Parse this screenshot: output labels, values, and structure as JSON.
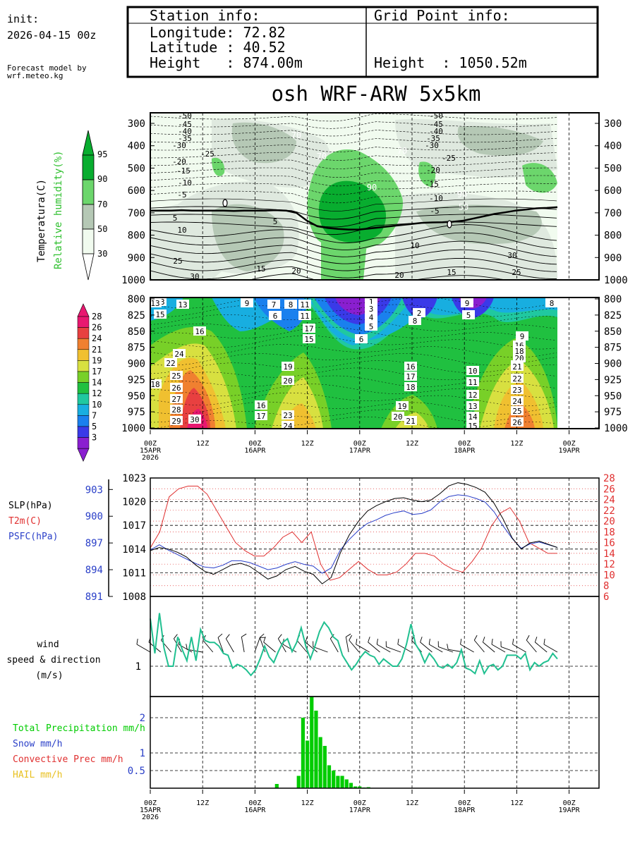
{
  "header": {
    "init_label": "init:",
    "init_time": "2026-04-15 00z",
    "model_line1": "Forecast model by",
    "model_line2": "wrf.meteo.kg",
    "station_title": "Station info:",
    "grid_title": "Grid Point info:",
    "station_lon": "Longitude: 72.82",
    "station_lat": "Latitude : 40.52",
    "station_height": "Height   : 874.00m",
    "grid_height": "Height  : 1050.52m",
    "main_title": "osh WRF-ARW 5x5km"
  },
  "colors": {
    "rh_30": "#f1fbef",
    "rh_50": "#dfe9df",
    "rh_70": "#b5c8b5",
    "rh_90": "#6cd66c",
    "rh_95": "#08ad2f",
    "t2m": "#e03030",
    "psfc": "#2a3fc8",
    "slp": "#000000",
    "wind": "#20c090",
    "precip": "#00cc00",
    "temp_scale": [
      "#8a1fd0",
      "#3a3ae8",
      "#1a80ee",
      "#18aee0",
      "#20c8a0",
      "#20c040",
      "#78d028",
      "#d8e040",
      "#f0c030",
      "#f08030",
      "#e84040",
      "#e81870"
    ]
  },
  "axes": {
    "time_ticks": [
      "00Z",
      "12Z",
      "00Z",
      "12Z",
      "00Z",
      "12Z",
      "00Z",
      "12Z",
      "00Z"
    ],
    "date_ticks": [
      "15APR",
      "16APR",
      "17APR",
      "18APR",
      "19APR"
    ],
    "year": "2026"
  },
  "chart_data": [
    {
      "type": "heatmap",
      "name": "upper-air",
      "ylabel_temp": "Temperatura(C)",
      "ylabel_rh": "Relative humidity(%)",
      "y_levels": [
        300,
        400,
        500,
        600,
        700,
        800,
        900,
        1000
      ],
      "rh_legend": [
        "95",
        "90",
        "70",
        "50",
        "30"
      ],
      "left_labels": [
        "-50",
        "-45",
        "-40",
        "-35",
        "-30",
        "-25",
        "-20",
        "-15",
        "-10",
        "-5",
        "0",
        "5",
        "10",
        "15",
        "20",
        "25",
        "30"
      ],
      "mid_labels": [
        "-50",
        "-45",
        "-40",
        "-35",
        "-30",
        "-25",
        "-20",
        "-15",
        "-10",
        "-5",
        "0",
        "5",
        "10",
        "15",
        "20",
        "25",
        "30"
      ],
      "rh_labels": [
        "70",
        "70",
        "90",
        "70",
        "90",
        "50"
      ],
      "freezing_level_hpa": [
        690,
        690,
        690,
        688,
        690,
        690,
        690,
        690,
        692,
        690,
        690,
        690,
        688,
        690,
        700,
        735,
        760,
        768,
        772,
        775,
        775,
        770,
        765,
        760,
        755,
        750,
        745,
        743,
        742,
        740,
        735,
        725,
        715,
        705,
        698,
        690,
        685,
        680,
        678,
        675
      ]
    },
    {
      "type": "heatmap",
      "name": "boundary-layer-temperature",
      "y_levels": [
        800,
        825,
        850,
        875,
        900,
        925,
        950,
        975,
        1000
      ],
      "scale_labels": [
        "28",
        "26",
        "24",
        "21",
        "19",
        "17",
        "14",
        "12",
        "10",
        "7",
        "5",
        "3"
      ],
      "labels": [
        "13",
        "15",
        "13",
        "9",
        "6",
        "7",
        "8",
        "11",
        "11",
        "17",
        "15",
        "1",
        "4",
        "5",
        "6",
        "3",
        "2",
        "8",
        "9",
        "8",
        "5",
        "9",
        "16",
        "20",
        "22",
        "24",
        "25",
        "26",
        "27",
        "28",
        "29",
        "30",
        "18",
        "19",
        "20",
        "16",
        "17",
        "23",
        "24",
        "13",
        "16",
        "17",
        "18",
        "19",
        "20",
        "21",
        "10",
        "11",
        "12",
        "13",
        "14",
        "15",
        "16",
        "18",
        "20",
        "21",
        "22",
        "23",
        "24",
        "25",
        "26"
      ]
    },
    {
      "type": "line",
      "name": "pressure-temperature",
      "series_labels": [
        "SLP(hPa)",
        "T2m(C)",
        "PSFC(hPa)"
      ],
      "slp_ticks": [
        "1023",
        "1020",
        "1017",
        "1014",
        "1011",
        "1008"
      ],
      "psfc_ticks": [
        "903",
        "900",
        "897",
        "894",
        "891"
      ],
      "t2m_ticks": [
        "28",
        "26",
        "24",
        "22",
        "20",
        "18",
        "16",
        "14",
        "12",
        "10",
        "8",
        "6"
      ],
      "slp": [
        1013.8,
        1014.2,
        1014.0,
        1013.6,
        1013.0,
        1012.0,
        1011.2,
        1010.8,
        1011.4,
        1012.0,
        1012.2,
        1011.8,
        1011.0,
        1010.2,
        1010.6,
        1011.4,
        1011.8,
        1011.2,
        1010.8,
        1009.6,
        1010.4,
        1013.5,
        1015.8,
        1017.5,
        1018.8,
        1019.5,
        1020.0,
        1020.4,
        1020.5,
        1020.2,
        1020.0,
        1020.2,
        1021.0,
        1022.0,
        1022.4,
        1022.2,
        1021.8,
        1021.2,
        1019.8,
        1017.8,
        1015.4,
        1014.0,
        1014.8,
        1015.0,
        1014.6,
        1014.2
      ],
      "psfc": [
        896.2,
        896.8,
        896.2,
        895.7,
        895.2,
        894.7,
        894.3,
        894.2,
        894.5,
        895.0,
        895.0,
        894.8,
        894.4,
        894.0,
        894.2,
        894.6,
        894.9,
        894.6,
        894.4,
        893.6,
        894.2,
        896.2,
        897.4,
        898.4,
        899.2,
        899.6,
        900.1,
        900.4,
        900.6,
        900.2,
        900.3,
        900.7,
        901.6,
        902.2,
        902.4,
        902.3,
        902.0,
        901.6,
        900.5,
        898.9,
        897.5,
        896.4,
        896.9,
        897.1,
        896.8,
        896.5
      ],
      "t2m": [
        15,
        18,
        24.5,
        26,
        26.5,
        26.5,
        25,
        22,
        19,
        16,
        14.5,
        13.5,
        13.5,
        15,
        17,
        18,
        16,
        18,
        12,
        9,
        9.5,
        11,
        12.5,
        11,
        10,
        10,
        10.5,
        12,
        14,
        14,
        13.5,
        12,
        11,
        10.5,
        12.5,
        15,
        19,
        21.5,
        22.5,
        20,
        16,
        15,
        14,
        14
      ]
    },
    {
      "type": "line",
      "name": "wind",
      "ylabel_line1": "wind",
      "ylabel_line2": "speed & direction",
      "ylabel_line3": "(m/s)",
      "ytick": "1",
      "speed": [
        3.6,
        1.7,
        3.9,
        2.0,
        1.0,
        1.0,
        2.6,
        1.9,
        1.3,
        2.6,
        1.3,
        3.0,
        2.4,
        2.3,
        2.3,
        2.1,
        1.7,
        1.6,
        0.9,
        1.1,
        1.0,
        0.8,
        0.5,
        0.8,
        1.4,
        2.1,
        1.5,
        1.2,
        1.8,
        2.3,
        2.5,
        1.8,
        2.3,
        3.1,
        2.1,
        1.4,
        2.1,
        2.9,
        3.4,
        3.1,
        2.6,
        2.4,
        1.6,
        1.2,
        0.8,
        1.1,
        1.5,
        1.8,
        1.6,
        1.5,
        1.1,
        1.4,
        1.2,
        1.0,
        1.0,
        1.4,
        2.2,
        3.3,
        2.2,
        1.8,
        1.2,
        1.7,
        1.4,
        1.0,
        0.9,
        1.1,
        0.9,
        1.2,
        1.9,
        0.9,
        0.8,
        0.6,
        1.3,
        0.6,
        1.0,
        1.1,
        0.8,
        1.0,
        1.6,
        1.6,
        1.6,
        1.4,
        1.7,
        0.8,
        1.2,
        1.0,
        1.2,
        1.3,
        1.7,
        1.4
      ],
      "barb_dir_deg": [
        300,
        310,
        320,
        330,
        300,
        280,
        320,
        340,
        330,
        350,
        20,
        340,
        310,
        330,
        300,
        320,
        310,
        290,
        330,
        350,
        320,
        300,
        310,
        300,
        290,
        300,
        320,
        310,
        300,
        290,
        280,
        300,
        320,
        310,
        300,
        290,
        300,
        320,
        310,
        300
      ]
    },
    {
      "type": "bar",
      "name": "precipitation",
      "series_labels": [
        "Total Precipitation mm/h",
        "Snow mm/h",
        "Convective Prec mm/h",
        "HAIL mm/h"
      ],
      "yticks": [
        "2",
        "1",
        "0.5"
      ],
      "x_hours": [
        29,
        34,
        35,
        36,
        37,
        38,
        39,
        40,
        41,
        42,
        43,
        44,
        45,
        46,
        47,
        48,
        49,
        50
      ],
      "values": [
        0.12,
        0.35,
        2.0,
        1.35,
        2.6,
        2.2,
        1.45,
        1.2,
        0.65,
        0.5,
        0.35,
        0.35,
        0.25,
        0.15,
        0.05,
        0.05,
        0.02,
        0.03
      ]
    }
  ]
}
